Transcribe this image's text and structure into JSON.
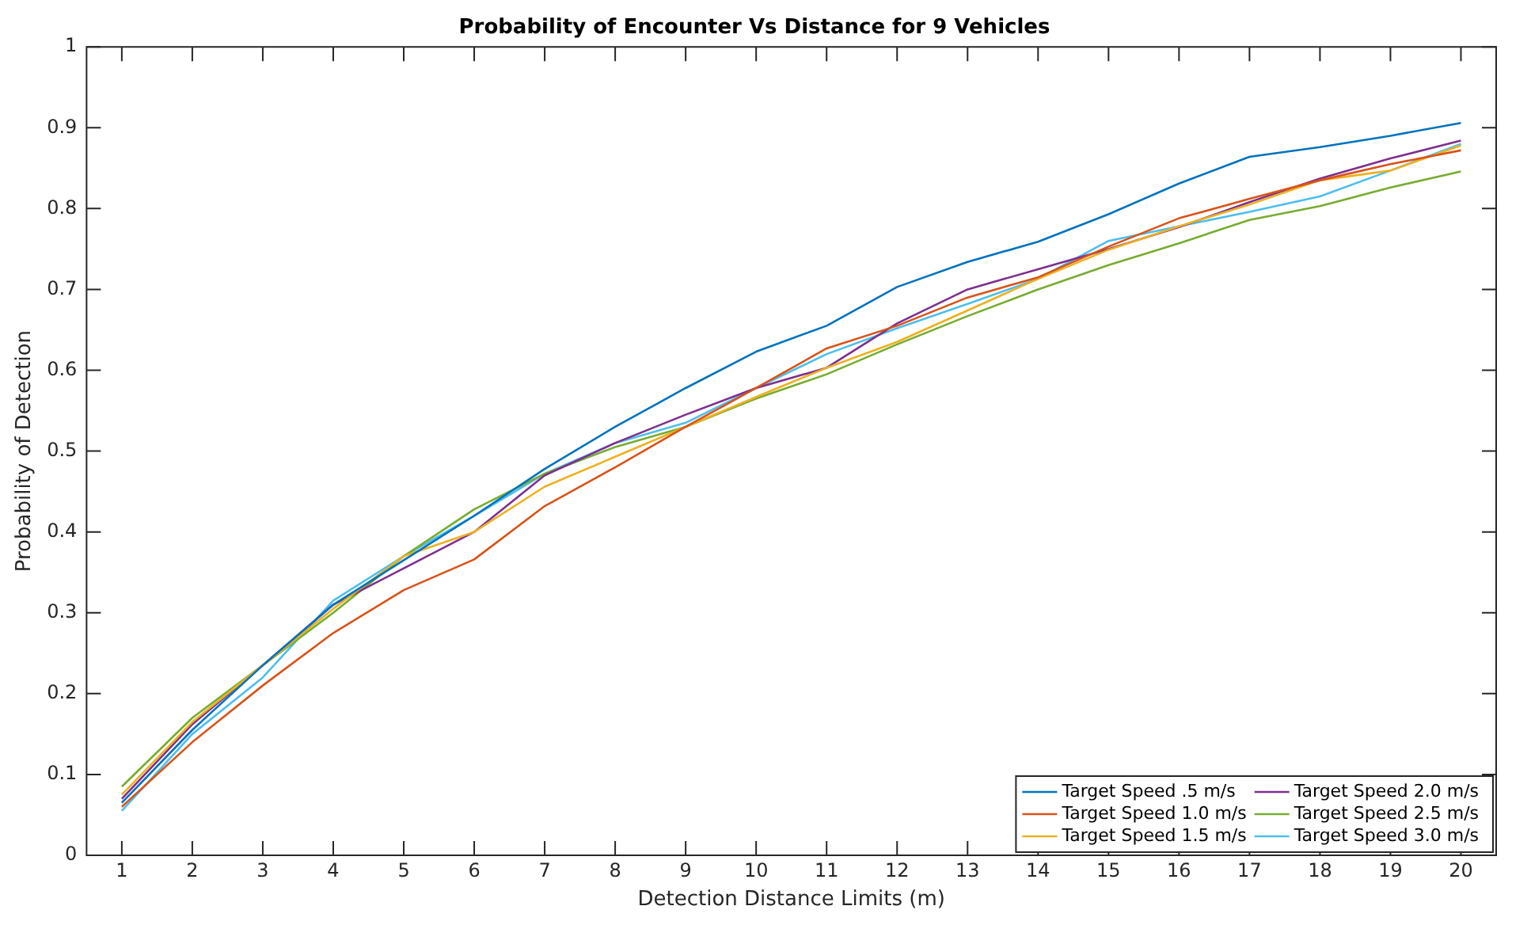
{
  "chart_data": {
    "type": "line",
    "title": "Probability of Encounter Vs Distance for 9 Vehicles",
    "xlabel": "Detection Distance Limits (m)",
    "ylabel": "Probability of Detection",
    "x": [
      1,
      2,
      3,
      4,
      5,
      6,
      7,
      8,
      9,
      10,
      11,
      12,
      13,
      14,
      15,
      16,
      17,
      18,
      19,
      20
    ],
    "xlim": [
      0.5,
      20.5
    ],
    "xticks": [
      1,
      2,
      3,
      4,
      5,
      6,
      7,
      8,
      9,
      10,
      11,
      12,
      13,
      14,
      15,
      16,
      17,
      18,
      19,
      20
    ],
    "ylim": [
      0,
      1
    ],
    "yticks": [
      0,
      0.1,
      0.2,
      0.3,
      0.4,
      0.5,
      0.6,
      0.7,
      0.8,
      0.9,
      1
    ],
    "grid": false,
    "legend": "bottom right",
    "marker": "none",
    "line_style": "solid",
    "series": [
      {
        "name": "Target Speed .5 m/s",
        "color": "#0072bd",
        "values": [
          0.065,
          0.155,
          0.235,
          0.31,
          0.365,
          0.42,
          0.478,
          0.53,
          0.578,
          0.623,
          0.655,
          0.703,
          0.734,
          0.759,
          0.793,
          0.831,
          0.864,
          0.876,
          0.89,
          0.906
        ]
      },
      {
        "name": "Target Speed 1.0 m/s",
        "color": "#d95319",
        "values": [
          0.06,
          0.14,
          0.21,
          0.275,
          0.328,
          0.366,
          0.432,
          0.48,
          0.53,
          0.578,
          0.627,
          0.655,
          0.69,
          0.715,
          0.753,
          0.788,
          0.812,
          0.835,
          0.855,
          0.872
        ]
      },
      {
        "name": "Target Speed 1.5 m/s",
        "color": "#edb120",
        "values": [
          0.075,
          0.165,
          0.235,
          0.305,
          0.37,
          0.4,
          0.456,
          0.493,
          0.53,
          0.567,
          0.603,
          0.635,
          0.674,
          0.713,
          0.749,
          0.778,
          0.805,
          0.835,
          0.847,
          0.878
        ]
      },
      {
        "name": "Target Speed 2.0 m/s",
        "color": "#7e2f8e",
        "values": [
          0.07,
          0.162,
          0.235,
          0.31,
          0.355,
          0.4,
          0.47,
          0.51,
          0.545,
          0.578,
          0.603,
          0.658,
          0.7,
          0.725,
          0.75,
          0.777,
          0.808,
          0.837,
          0.862,
          0.884
        ]
      },
      {
        "name": "Target Speed 2.5 m/s",
        "color": "#77ac30",
        "values": [
          0.085,
          0.17,
          0.235,
          0.3,
          0.37,
          0.428,
          0.472,
          0.505,
          0.53,
          0.565,
          0.595,
          0.632,
          0.667,
          0.7,
          0.73,
          0.757,
          0.786,
          0.803,
          0.826,
          0.846
        ]
      },
      {
        "name": "Target Speed 3.0 m/s",
        "color": "#4dbeee",
        "values": [
          0.055,
          0.15,
          0.22,
          0.315,
          0.37,
          0.42,
          0.472,
          0.51,
          0.535,
          0.578,
          0.62,
          0.652,
          0.682,
          0.713,
          0.76,
          0.778,
          0.796,
          0.815,
          0.847,
          0.88
        ]
      }
    ]
  }
}
